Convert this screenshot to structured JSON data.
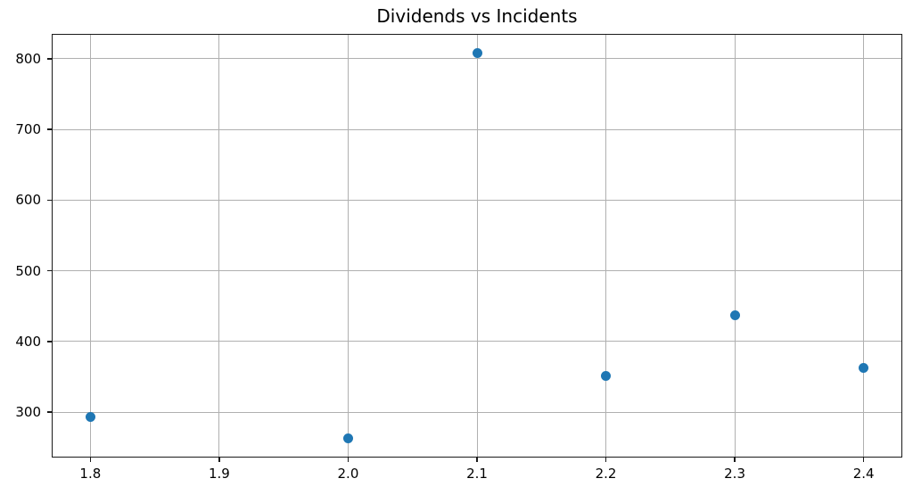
{
  "figure": {
    "title": "Dividends vs Incidents"
  },
  "chart_data": {
    "type": "scatter",
    "title": "Dividends vs Incidents",
    "xlabel": "",
    "ylabel": "",
    "points": [
      {
        "x": 1.8,
        "y": 293
      },
      {
        "x": 2.0,
        "y": 263
      },
      {
        "x": 2.1,
        "y": 808
      },
      {
        "x": 2.2,
        "y": 351
      },
      {
        "x": 2.3,
        "y": 437
      },
      {
        "x": 2.4,
        "y": 362
      }
    ],
    "xlim": [
      1.77,
      2.43
    ],
    "ylim": [
      235.75,
      835.25
    ],
    "xticks": [
      1.8,
      1.9,
      2.0,
      2.1,
      2.2,
      2.3,
      2.4
    ],
    "xtick_labels": [
      "1.8",
      "1.9",
      "2.0",
      "2.1",
      "2.2",
      "2.3",
      "2.4"
    ],
    "yticks": [
      300,
      400,
      500,
      600,
      700,
      800
    ],
    "ytick_labels": [
      "300",
      "400",
      "500",
      "600",
      "700",
      "800"
    ],
    "grid": true,
    "legend": null,
    "marker_color": "#1f77b4",
    "grid_color": "#b0b0b0",
    "spine_color": "#1a1a1a"
  }
}
